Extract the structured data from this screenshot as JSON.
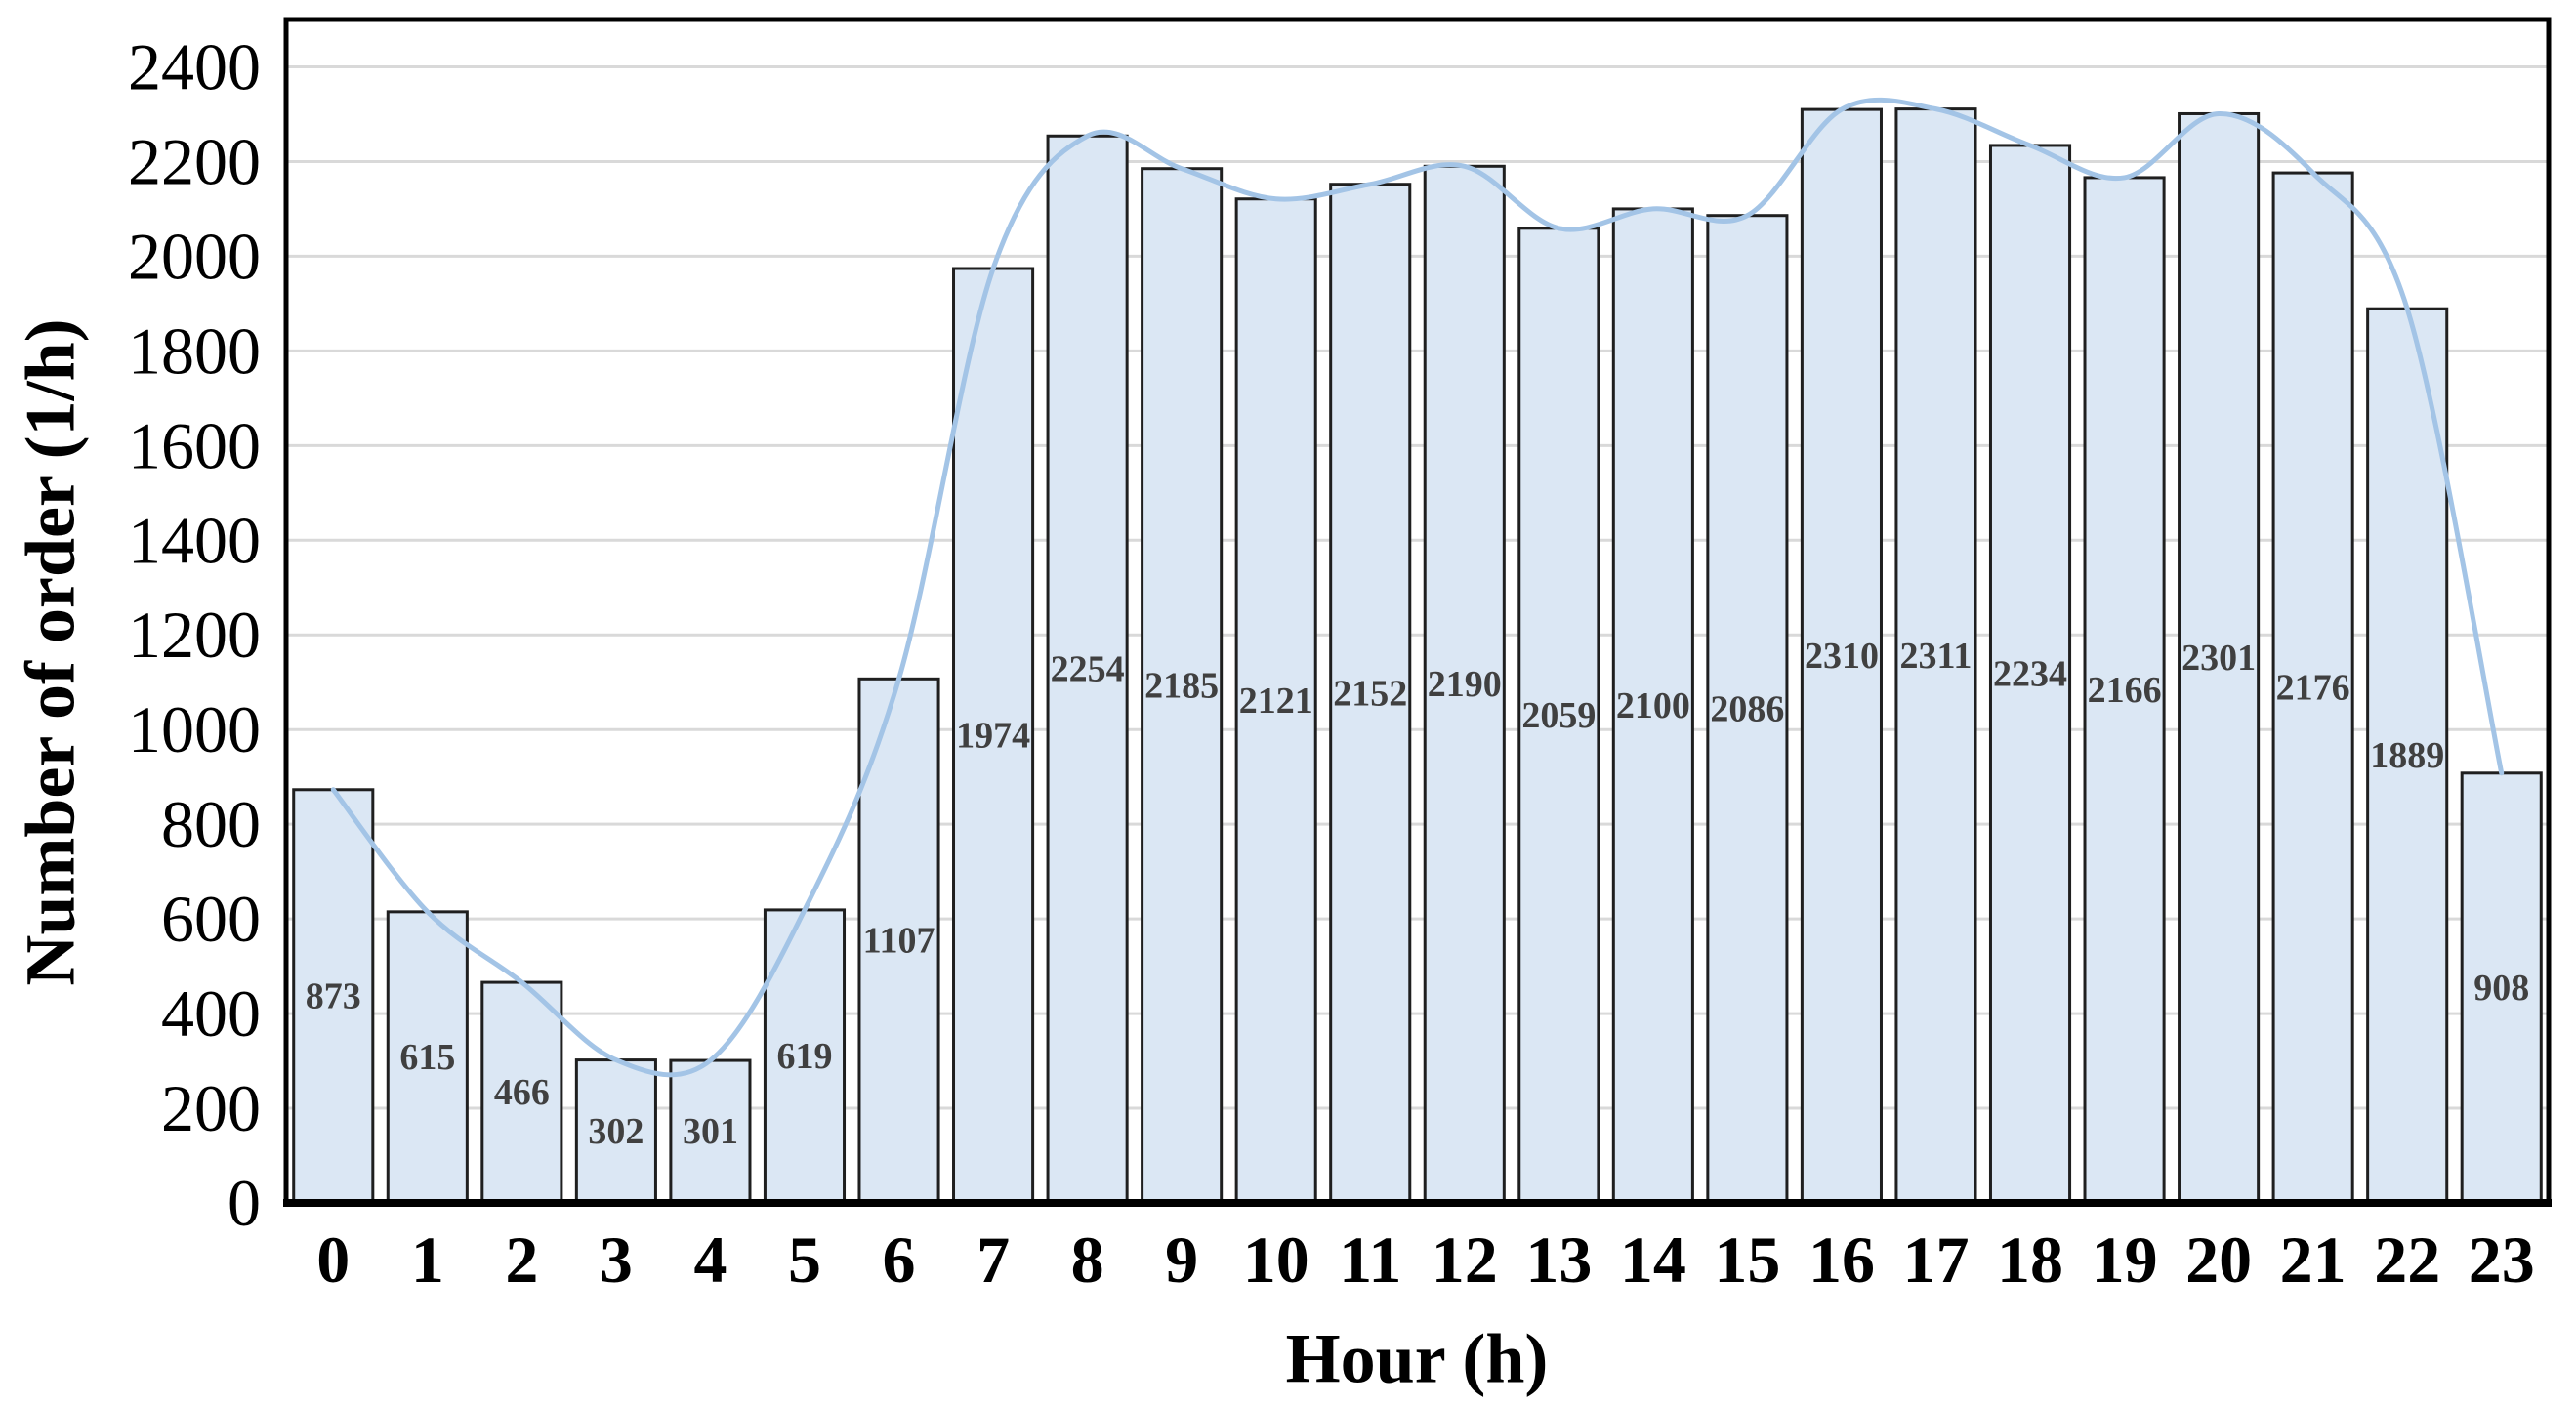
{
  "chart_data": {
    "type": "bar",
    "title": "",
    "xlabel": "Hour (h)",
    "ylabel": "Number of order (1/h)",
    "categories": [
      "0",
      "1",
      "2",
      "3",
      "4",
      "5",
      "6",
      "7",
      "8",
      "9",
      "10",
      "11",
      "12",
      "13",
      "14",
      "15",
      "16",
      "17",
      "18",
      "19",
      "20",
      "21",
      "22",
      "23"
    ],
    "values": [
      873,
      615,
      466,
      302,
      301,
      619,
      1107,
      1974,
      2254,
      2185,
      2121,
      2152,
      2190,
      2059,
      2100,
      2086,
      2310,
      2311,
      2234,
      2166,
      2301,
      2176,
      1889,
      908
    ],
    "bar_value_labels": [
      "873",
      "615",
      "466",
      "302",
      "301",
      "619",
      "1107",
      "1974",
      "2254",
      "2185",
      "2121",
      "2152",
      "2190",
      "2059",
      "2100",
      "2086",
      "2310",
      "2311",
      "2234",
      "2166",
      "2301",
      "2176",
      "1889",
      "908"
    ],
    "yticks": [
      0,
      200,
      400,
      600,
      800,
      1000,
      1200,
      1400,
      1600,
      1800,
      2000,
      2200,
      2400
    ],
    "ylim": [
      0,
      2500
    ],
    "grid": "horizontal",
    "legend": "none",
    "smooth_trend_line": true,
    "colors": {
      "bar_fill": "#dbe7f4",
      "bar_border": "#1f1f1f",
      "trend_line": "#a3c4e6",
      "gridline": "#d9d9d9",
      "bar_label_text": "#404040",
      "axis_text": "#000000",
      "frame": "#000000"
    }
  }
}
